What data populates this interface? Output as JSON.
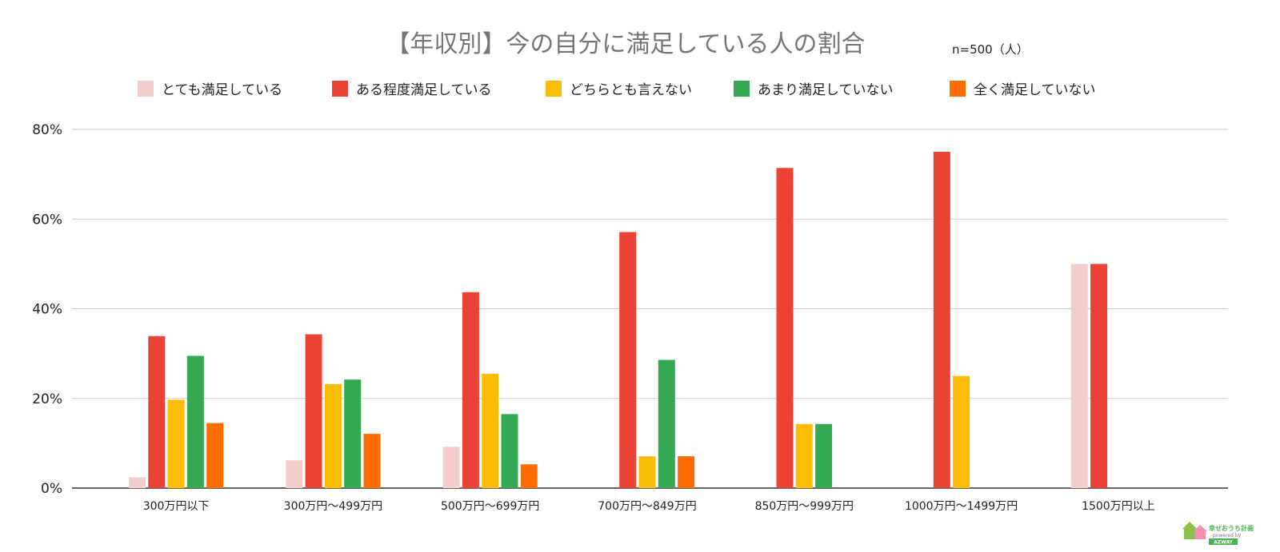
{
  "chart_data": {
    "type": "bar",
    "title": "【年収別】今の自分に満足している人の割合",
    "sample_note": "n=500（人）",
    "categories": [
      "300万円以下",
      "300万円～499万円",
      "500万円～699万円",
      "700万円～849万円",
      "850万円～999万円",
      "1000万円～1499万円",
      "1500万円以上"
    ],
    "series": [
      {
        "name": "とても満足している",
        "color": "#f4cccc",
        "values": [
          2.4,
          6.2,
          9.2,
          0,
          0,
          0,
          50
        ]
      },
      {
        "name": "ある程度満足している",
        "color": "#ea4335",
        "values": [
          33.9,
          34.3,
          43.7,
          57.1,
          71.4,
          75,
          50
        ]
      },
      {
        "name": "どちらとも言えない",
        "color": "#fbbc04",
        "values": [
          19.7,
          23.2,
          25.5,
          7.1,
          14.3,
          25,
          0
        ]
      },
      {
        "name": "あまり満足していない",
        "color": "#34a853",
        "values": [
          29.5,
          24.2,
          16.5,
          28.6,
          14.3,
          0,
          0
        ]
      },
      {
        "name": "全く満足していない",
        "color": "#ff6d01",
        "values": [
          14.5,
          12.1,
          5.3,
          7.1,
          0,
          0,
          0
        ]
      }
    ],
    "yticks": [
      "0%",
      "20%",
      "40%",
      "60%",
      "80%"
    ],
    "ylim": [
      0,
      80
    ],
    "xlabel": "",
    "ylabel": "",
    "legend_position": "top",
    "grid": true
  },
  "logo": {
    "name": "幸せおうち計画",
    "tagline": "powered by",
    "brand": "AZWAY"
  }
}
